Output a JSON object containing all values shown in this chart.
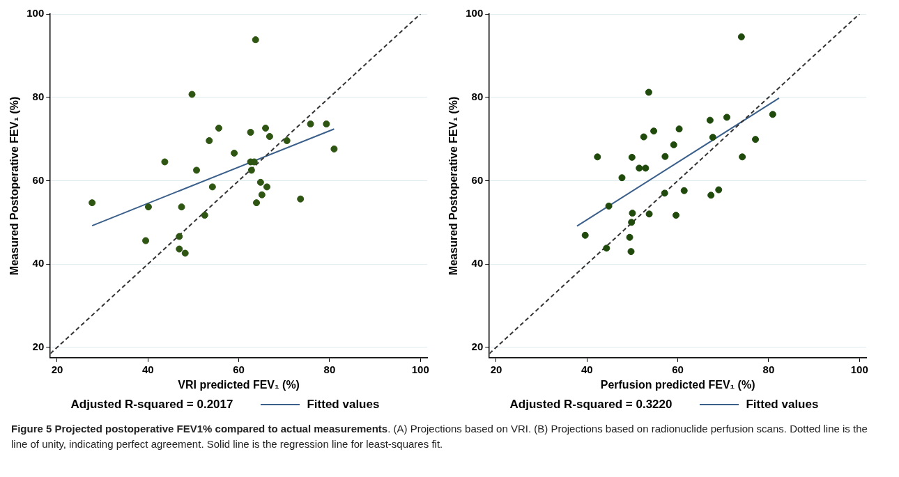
{
  "chart_data": [
    {
      "type": "scatter",
      "xlabel": "VRI predicted FEV₁ (%)",
      "ylabel": "Measured Postoperative FEV₁ (%)",
      "xlim": [
        18.5,
        101.5
      ],
      "ylim": [
        17.5,
        100
      ],
      "xticks": [
        20,
        40,
        60,
        80,
        100
      ],
      "yticks": [
        20,
        40,
        60,
        80,
        100
      ],
      "grid": "y",
      "legend": "bottom",
      "annotations": [
        "Adjusted R-squared = 0.2017"
      ],
      "series": [
        {
          "type": "scatter",
          "marker": "circle",
          "color": "#2e5512",
          "x": [
            63.7,
            49.7,
            55.6,
            62.6,
            65.9,
            66.8,
            75.8,
            79.3,
            53.5,
            70.6,
            81.0,
            59.0,
            43.7,
            62.6,
            63.4,
            50.7,
            62.8,
            64.8,
            54.2,
            66.2,
            65.1,
            27.7,
            73.6,
            63.9,
            40.1,
            47.4,
            52.5,
            46.9,
            39.5,
            46.9,
            48.2
          ],
          "values": [
            93.8,
            80.7,
            72.6,
            71.6,
            72.6,
            70.6,
            73.6,
            73.6,
            69.6,
            69.6,
            67.6,
            66.6,
            64.5,
            64.5,
            64.5,
            62.5,
            62.5,
            59.6,
            58.5,
            58.5,
            56.6,
            54.7,
            55.6,
            54.7,
            53.7,
            53.7,
            51.7,
            46.6,
            45.6,
            43.6,
            42.6
          ]
        },
        {
          "type": "line",
          "line_style": "dashed",
          "color": "#333333",
          "x": [
            18.5,
            100
          ],
          "values": [
            18.5,
            100
          ]
        },
        {
          "type": "line",
          "name": "Fitted values",
          "color": "#3a5f8a",
          "x": [
            27.7,
            81.0
          ],
          "values": [
            49.2,
            72.4
          ]
        }
      ]
    },
    {
      "type": "scatter",
      "xlabel": "Perfusion predicted FEV₁ (%)",
      "ylabel": "Measured Postoperative FEV₁ (%)",
      "xlim": [
        18.5,
        101.5
      ],
      "ylim": [
        17.5,
        100
      ],
      "xticks": [
        20,
        40,
        60,
        80,
        100
      ],
      "yticks": [
        20,
        40,
        60,
        80,
        100
      ],
      "grid": "y",
      "legend": "bottom",
      "annotations": [
        "Adjusted R-squared = 0.3220"
      ],
      "series": [
        {
          "type": "scatter",
          "marker": "circle",
          "color": "#1f4a0c",
          "x": [
            74.0,
            53.6,
            80.9,
            67.1,
            70.8,
            54.7,
            60.3,
            52.5,
            67.7,
            59.1,
            77.1,
            42.3,
            49.9,
            57.2,
            74.2,
            51.5,
            52.9,
            47.7,
            61.4,
            69.0,
            57.1,
            67.3,
            44.8,
            50.0,
            53.7,
            59.6,
            49.8,
            39.6,
            49.4,
            44.3,
            49.7
          ],
          "values": [
            94.5,
            81.2,
            75.9,
            74.5,
            75.2,
            71.9,
            72.4,
            70.5,
            70.4,
            68.6,
            69.9,
            65.7,
            65.6,
            65.8,
            65.7,
            63.0,
            63.0,
            60.7,
            57.6,
            57.8,
            57.0,
            56.5,
            53.9,
            52.2,
            52.0,
            51.7,
            50.0,
            46.9,
            46.4,
            43.8,
            43.0
          ]
        },
        {
          "type": "line",
          "line_style": "dashed",
          "color": "#333333",
          "x": [
            18.5,
            100
          ],
          "values": [
            18.5,
            100
          ]
        },
        {
          "type": "line",
          "name": "Fitted values",
          "color": "#3a5f8a",
          "x": [
            37.8,
            82.3
          ],
          "values": [
            49.1,
            79.8
          ]
        }
      ]
    },
    {
      "type": "other",
      "title": "Figure 5 Projected postoperative FEV1% compared to actual measurements",
      "annotations": [
        ". (A) Projections based on VRI. (B) Projections based on radionuclide perfusion scans. Dotted line is the line of unity, indicating perfect agreement. Solid line is the regression line for least-squares fit."
      ]
    }
  ]
}
